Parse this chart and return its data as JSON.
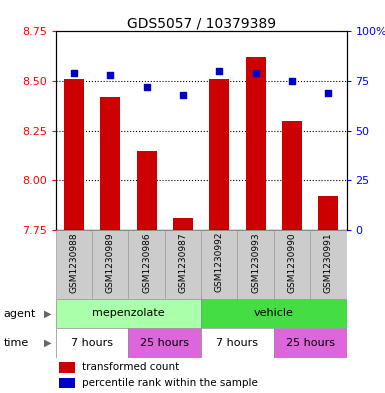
{
  "title": "GDS5057 / 10379389",
  "samples": [
    "GSM1230988",
    "GSM1230989",
    "GSM1230986",
    "GSM1230987",
    "GSM1230992",
    "GSM1230993",
    "GSM1230990",
    "GSM1230991"
  ],
  "bar_values": [
    8.51,
    8.42,
    8.15,
    7.81,
    8.51,
    8.62,
    8.3,
    7.92
  ],
  "percentile_values": [
    79,
    78,
    72,
    68,
    80,
    79,
    75,
    69
  ],
  "bar_color": "#cc0000",
  "dot_color": "#0000cc",
  "ylim_left": [
    7.75,
    8.75
  ],
  "ylim_right": [
    0,
    100
  ],
  "yticks_left": [
    7.75,
    8.0,
    8.25,
    8.5,
    8.75
  ],
  "yticks_right": [
    0,
    25,
    50,
    75,
    100
  ],
  "ytick_labels_right": [
    "0",
    "25",
    "50",
    "75",
    "100%"
  ],
  "agent_color_light": "#aaffaa",
  "agent_color_dark": "#44dd44",
  "time_color_white": "#ffffff",
  "time_color_pink": "#dd66dd",
  "time_labels": [
    "7 hours",
    "25 hours",
    "7 hours",
    "25 hours"
  ],
  "legend_bar_label": "transformed count",
  "legend_dot_label": "percentile rank within the sample",
  "bar_width": 0.55,
  "xlabel_bg": "#cccccc",
  "bar_bottom": 7.75
}
